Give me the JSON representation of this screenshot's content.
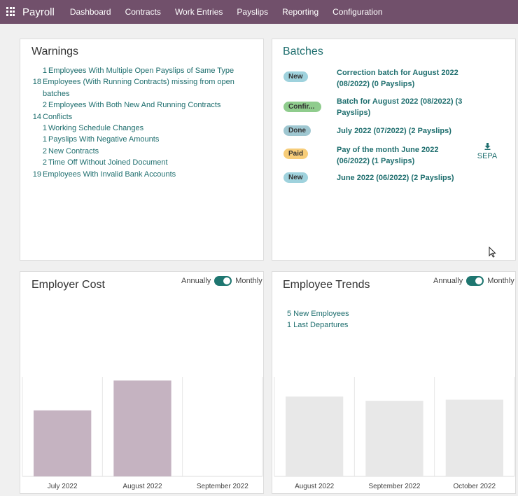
{
  "nav": {
    "app_name": "Payroll",
    "items": [
      "Dashboard",
      "Contracts",
      "Work Entries",
      "Payslips",
      "Reporting",
      "Configuration"
    ]
  },
  "warnings": {
    "title": "Warnings",
    "items": [
      {
        "count": "1",
        "label": "Employees With Multiple Open Payslips of Same Type"
      },
      {
        "count": "18",
        "label": "Employees (With Running Contracts) missing from open batches"
      },
      {
        "count": "2",
        "label": "Employees With Both New And Running Contracts"
      },
      {
        "count": "14",
        "label": "Conflicts"
      },
      {
        "count": "1",
        "label": "Working Schedule Changes"
      },
      {
        "count": "1",
        "label": "Payslips With Negative Amounts"
      },
      {
        "count": "2",
        "label": "New Contracts"
      },
      {
        "count": "2",
        "label": "Time Off Without Joined Document"
      },
      {
        "count": "19",
        "label": "Employees With Invalid Bank Accounts"
      }
    ]
  },
  "batches": {
    "title": "Batches",
    "items": [
      {
        "status": "New",
        "name": "Correction batch for August 2022 (08/2022) (0 Payslips)"
      },
      {
        "status": "Confir...",
        "name": "Batch for August 2022 (08/2022) (3 Payslips)"
      },
      {
        "status": "Done",
        "name": "July 2022 (07/2022) (2 Payslips)"
      },
      {
        "status": "Paid",
        "name": "Pay of the month June 2022 (06/2022) (1 Payslips)"
      },
      {
        "status": "New",
        "name": "June 2022 (06/2022) (2 Payslips)"
      }
    ],
    "sepa_label": "SEPA",
    "sepa_icon": "download-icon"
  },
  "employer_cost": {
    "title": "Employer Cost",
    "toggle_left": "Annually",
    "toggle_right": "Monthly"
  },
  "employee_trends": {
    "title": "Employee Trends",
    "toggle_left": "Annually",
    "toggle_right": "Monthly",
    "stats": [
      "5 New Employees",
      "1 Last Departures"
    ]
  },
  "colors": {
    "navbar": "#71506b",
    "link": "#1e6e6e",
    "cost_bar": "#c5b3c1",
    "trend_bar": "#e8e8e8",
    "toggle": "#1e7670"
  },
  "chart_data": [
    {
      "type": "bar",
      "categories": [
        "July 2022",
        "August 2022",
        "September 2022"
      ],
      "values": [
        62,
        90,
        0
      ],
      "ylim": [
        0,
        100
      ],
      "title": "Employer Cost"
    },
    {
      "type": "bar",
      "categories": [
        "August 2022",
        "September 2022",
        "October 2022"
      ],
      "values": [
        75,
        71,
        72
      ],
      "ylim": [
        0,
        100
      ],
      "title": "Employee Trends"
    }
  ]
}
